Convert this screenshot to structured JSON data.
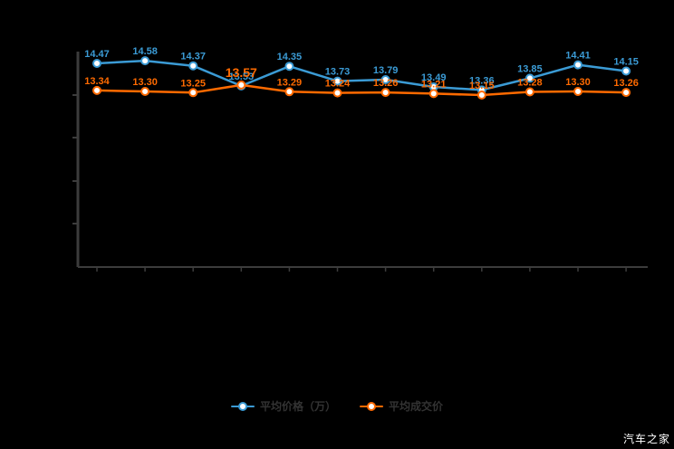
{
  "chart_data": {
    "type": "line",
    "title": "",
    "xlabel": "",
    "ylabel": "",
    "grid": false,
    "legend_position": "bottom",
    "x_count": 12,
    "x_tick_labels_visible": false,
    "y_tick_labels_visible": false,
    "series": [
      {
        "name": "平均价格（万）",
        "color": "#3B9BD5",
        "values": [
          14.47,
          14.58,
          14.37,
          13.53,
          14.35,
          13.73,
          13.79,
          13.49,
          13.36,
          13.85,
          14.41,
          14.15
        ],
        "labels": [
          "14.47",
          "14.58",
          "14.37",
          "13.53",
          "14.35",
          "13.73",
          "13.79",
          "13.49",
          "13.36",
          "13.85",
          "14.41",
          "14.15"
        ]
      },
      {
        "name": "平均成交价",
        "color": "#FF6A00",
        "values": [
          13.34,
          13.3,
          13.25,
          13.57,
          13.29,
          13.24,
          13.26,
          13.21,
          13.15,
          13.28,
          13.3,
          13.26
        ],
        "labels": [
          "13.34",
          "13.30",
          "13.25",
          "13.57",
          "13.29",
          "13.24",
          "13.26",
          "13.21",
          "13.15",
          "13.28",
          "13.30",
          "13.26"
        ],
        "emphasis_label_index": 3
      }
    ]
  },
  "legend": {
    "items": [
      {
        "label": "平均价格（万）",
        "color": "#3B9BD5"
      },
      {
        "label": "平均成交价",
        "color": "#FF6A00"
      }
    ]
  },
  "watermark": {
    "text": "汽车之家"
  },
  "colors": {
    "background": "#000000",
    "axis": "#3C3C3C",
    "legend_text": "#333333",
    "series_blue": "#3B9BD5",
    "series_orange": "#FF6A00",
    "marker_center": "#FFFFFF",
    "watermark_bg": "#000000",
    "watermark_text": "#FFFFFF"
  }
}
